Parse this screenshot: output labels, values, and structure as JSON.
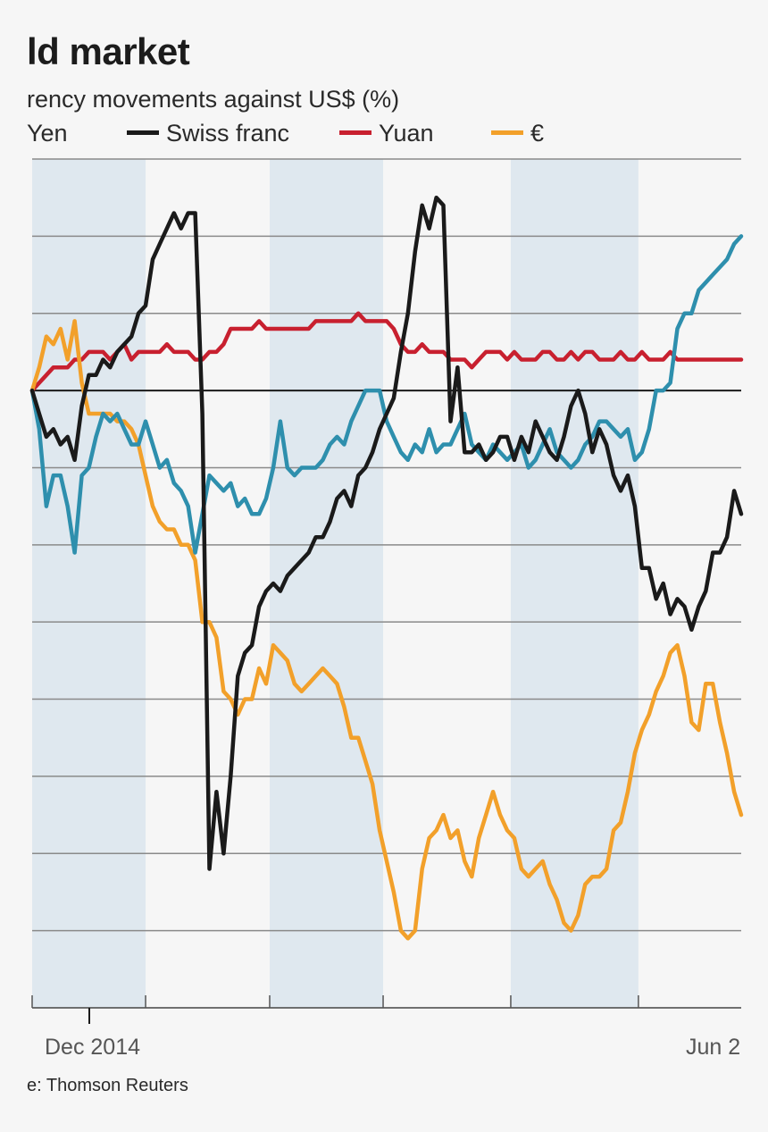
{
  "header": {
    "title": "ld market",
    "subtitle": "rency movements against US$ (%)",
    "source": "e: Thomson Reuters"
  },
  "chart_data": {
    "type": "line",
    "x_tick_labels": [
      "Dec 2014",
      "Jun 2"
    ],
    "legend_position": "top",
    "grid": true,
    "ylim": [
      -80,
      30
    ],
    "shaded_bands": [
      [
        0,
        16
      ],
      [
        33.5,
        49.5
      ],
      [
        67.5,
        85.5
      ]
    ],
    "series": [
      {
        "name": "Yen",
        "color": "#2e8fad",
        "legend_text": "Yen",
        "x": [
          0,
          1,
          2,
          3,
          4,
          5,
          6,
          7,
          8,
          9,
          10,
          11,
          12,
          13,
          14,
          15,
          16,
          17,
          18,
          19,
          20,
          21,
          22,
          23,
          24,
          25,
          26,
          27,
          28,
          29,
          30,
          31,
          32,
          33,
          34,
          35,
          36,
          37,
          38,
          39,
          40,
          41,
          42,
          43,
          44,
          45,
          46,
          47,
          48,
          49,
          50,
          51,
          52,
          53,
          54,
          55,
          56,
          57,
          58,
          59,
          60,
          61,
          62,
          63,
          64,
          65,
          66,
          67,
          68,
          69,
          70,
          71,
          72,
          73,
          74,
          75,
          76,
          77,
          78,
          79,
          80,
          81,
          82,
          83,
          84,
          85,
          86,
          87,
          88,
          89,
          90,
          91,
          92,
          93,
          94,
          95,
          96,
          97,
          98,
          99,
          100
        ],
        "y": [
          0,
          -5,
          -15,
          -11,
          -11,
          -15,
          -21,
          -11,
          -10,
          -6,
          -3,
          -4,
          -3,
          -5,
          -7,
          -7,
          -4,
          -7,
          -10,
          -9,
          -12,
          -13,
          -15,
          -21,
          -16,
          -11,
          -12,
          -13,
          -12,
          -15,
          -14,
          -16,
          -16,
          -14,
          -10,
          -4,
          -10,
          -11,
          -10,
          -10,
          -10,
          -9,
          -7,
          -6,
          -7,
          -4,
          -2,
          0,
          0,
          0,
          -4,
          -6,
          -8,
          -9,
          -7,
          -8,
          -5,
          -8,
          -7,
          -7,
          -5,
          -3,
          -7,
          -8,
          -9,
          -7,
          -8,
          -9,
          -8,
          -7,
          -10,
          -9,
          -7,
          -5,
          -8,
          -9,
          -10,
          -9,
          -7,
          -6,
          -4,
          -4,
          -5,
          -6,
          -5,
          -9,
          -8,
          -5,
          0,
          0,
          1,
          8,
          10,
          10,
          13,
          14,
          15,
          16,
          17,
          19,
          20
        ],
        "values_note": ""
      },
      {
        "name": "Swiss franc",
        "color": "#1a1a1a",
        "legend_text": "Swiss franc",
        "x": [],
        "y": []
      },
      {
        "name": "Yuan",
        "color": "#c8202f",
        "legend_text": "Yuan",
        "x": [],
        "y": []
      },
      {
        "name": "€",
        "color": "#f2a02a",
        "legend_text": "€",
        "x": [],
        "y": []
      }
    ],
    "x_count": 100,
    "title": "",
    "xlabel": "",
    "ylabel": ""
  }
}
